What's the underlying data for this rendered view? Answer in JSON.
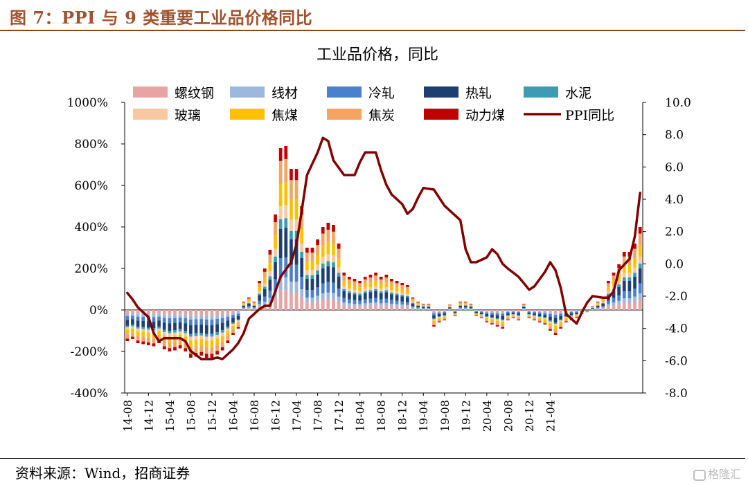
{
  "figure": {
    "title": "图 7：PPI 与 9 类重要工业品价格同比",
    "source": "资料来源：Wind，招商证券",
    "watermark": "格隆汇"
  },
  "chart_data": {
    "type": "bar",
    "title": "工业品价格，同比",
    "stacked": true,
    "left_axis": {
      "ylim": [
        -400,
        1000
      ],
      "ticks": [
        -400,
        -200,
        0,
        200,
        400,
        600,
        800,
        1000
      ],
      "tick_labels": [
        "-400%",
        "-200%",
        "0%",
        "200%",
        "400%",
        "600%",
        "800%",
        "1000%"
      ]
    },
    "right_axis": {
      "ylim": [
        -8,
        10
      ],
      "ticks": [
        -8,
        -6,
        -4,
        -2,
        0,
        2,
        4,
        6,
        8,
        10
      ],
      "tick_labels": [
        "-8.0",
        "-6.0",
        "-4.0",
        "-2.0",
        "0.0",
        "2.0",
        "4.0",
        "6.0",
        "8.0",
        "10.0"
      ]
    },
    "x_start": "2014-08",
    "x_tick_labels": [
      "14-08",
      "14-12",
      "15-04",
      "15-08",
      "15-12",
      "16-04",
      "16-08",
      "16-12",
      "17-04",
      "17-08",
      "17-12",
      "18-04",
      "18-08",
      "18-12",
      "19-04",
      "19-08",
      "19-12",
      "20-04",
      "20-08",
      "20-12",
      "21-04"
    ],
    "legend_position": "top",
    "series": [
      {
        "name": "螺纹钢",
        "color": "#e8a3a3"
      },
      {
        "name": "线材",
        "color": "#9cb8dc"
      },
      {
        "name": "冷轧",
        "color": "#4a80cc"
      },
      {
        "name": "热轧",
        "color": "#1f3f73"
      },
      {
        "name": "水泥",
        "color": "#3c9cb4"
      },
      {
        "name": "玻璃",
        "color": "#f8c8a0"
      },
      {
        "name": "焦煤",
        "color": "#ffc000"
      },
      {
        "name": "焦炭",
        "color": "#f4a460"
      },
      {
        "name": "动力煤",
        "color": "#c00000"
      }
    ],
    "stacked_totals": [
      -150,
      -140,
      -160,
      -165,
      -170,
      -175,
      -160,
      -190,
      -200,
      -195,
      -185,
      -200,
      -230,
      -225,
      -220,
      -230,
      -230,
      -215,
      -195,
      -160,
      -120,
      -90,
      40,
      60,
      40,
      140,
      200,
      290,
      460,
      780,
      790,
      680,
      680,
      500,
      300,
      300,
      340,
      400,
      420,
      410,
      320,
      180,
      160,
      150,
      140,
      160,
      170,
      180,
      160,
      170,
      150,
      140,
      130,
      120,
      60,
      40,
      30,
      30,
      -80,
      -60,
      -50,
      25,
      -30,
      40,
      40,
      30,
      -30,
      -40,
      -60,
      -70,
      -80,
      -90,
      -50,
      -40,
      -50,
      30,
      -40,
      -50,
      -60,
      -70,
      -100,
      -120,
      -90,
      -60,
      -50,
      -40,
      -20,
      -10,
      20,
      40,
      60,
      140,
      180,
      220,
      280,
      280,
      320,
      400
    ],
    "ppi": {
      "name": "PPI同比",
      "color": "#800000",
      "values": [
        -1.8,
        -2.2,
        -2.7,
        -3.3,
        -4.3,
        -4.8,
        -4.6,
        -4.6,
        -4.6,
        -4.8,
        -5.4,
        -5.9,
        -5.9,
        -5.9,
        -5.8,
        -5.9,
        -5.3,
        -4.9,
        -4.3,
        -3.4,
        -2.8,
        -2.6,
        -2.6,
        -1.7,
        -0.8,
        0.1,
        1.2,
        3.3,
        5.5,
        6.9,
        7.8,
        7.6,
        6.4,
        5.5,
        5.5,
        5.5,
        6.3,
        6.9,
        6.9,
        5.8,
        4.9,
        4.3,
        3.7,
        3.1,
        3.4,
        4.1,
        4.7,
        4.6,
        4.1,
        3.6,
        3.3,
        2.7,
        0.9,
        0.1,
        0.1,
        0.4,
        0.9,
        0.6,
        0.0,
        -0.3,
        -0.8,
        -1.2,
        -1.6,
        -1.4,
        -0.5,
        0.1,
        -0.4,
        -1.5,
        -3.1,
        -3.7,
        -3.0,
        -2.4,
        -2.0,
        -2.1,
        -2.1,
        -1.7,
        -0.4,
        0.3,
        1.7,
        4.4
      ]
    }
  }
}
